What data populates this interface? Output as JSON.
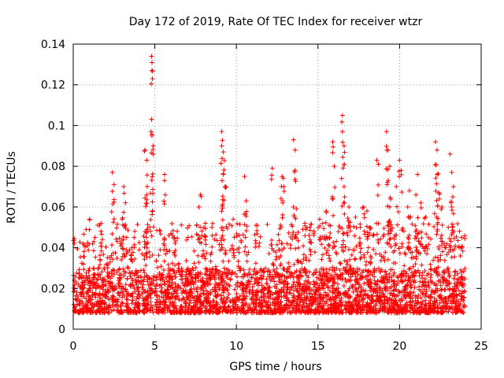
{
  "chart_data": {
    "type": "scatter",
    "title": "Day 172 of 2019, Rate Of TEC Index for receiver wtzr",
    "xlabel": "GPS time / hours",
    "ylabel": "ROTI / TECUs",
    "xlim": [
      0,
      25
    ],
    "ylim": [
      0,
      0.14
    ],
    "xticks": [
      0,
      5,
      10,
      15,
      20,
      25
    ],
    "xtick_labels": [
      "0",
      "5",
      "10",
      "15",
      "20",
      "25"
    ],
    "yticks": [
      0,
      0.02,
      0.04,
      0.06,
      0.08,
      0.1,
      0.12,
      0.14
    ],
    "ytick_labels": [
      "0",
      "0.02",
      "0.04",
      "0.06",
      "0.08",
      "0.1",
      "0.12",
      "0.14"
    ],
    "grid": true,
    "marker": "+",
    "color": "#ff0000",
    "data_extent_hours": [
      0,
      24
    ],
    "typical_band": [
      0.008,
      0.03
    ],
    "spikes": [
      {
        "x": 0.6,
        "y": 0.042
      },
      {
        "x": 1.0,
        "y": 0.054
      },
      {
        "x": 1.7,
        "y": 0.052
      },
      {
        "x": 2.4,
        "y": 0.077
      },
      {
        "x": 2.5,
        "y": 0.071
      },
      {
        "x": 3.0,
        "y": 0.054
      },
      {
        "x": 3.1,
        "y": 0.07
      },
      {
        "x": 3.2,
        "y": 0.062
      },
      {
        "x": 3.6,
        "y": 0.04
      },
      {
        "x": 4.4,
        "y": 0.088
      },
      {
        "x": 4.5,
        "y": 0.083
      },
      {
        "x": 4.5,
        "y": 0.066
      },
      {
        "x": 4.8,
        "y": 0.134
      },
      {
        "x": 4.82,
        "y": 0.127
      },
      {
        "x": 4.85,
        "y": 0.123
      },
      {
        "x": 4.8,
        "y": 0.103
      },
      {
        "x": 4.9,
        "y": 0.09
      },
      {
        "x": 5.6,
        "y": 0.076
      },
      {
        "x": 5.6,
        "y": 0.073
      },
      {
        "x": 6.2,
        "y": 0.045
      },
      {
        "x": 7.8,
        "y": 0.066
      },
      {
        "x": 7.7,
        "y": 0.06
      },
      {
        "x": 8.1,
        "y": 0.052
      },
      {
        "x": 8.5,
        "y": 0.05
      },
      {
        "x": 9.1,
        "y": 0.097
      },
      {
        "x": 9.1,
        "y": 0.09
      },
      {
        "x": 9.2,
        "y": 0.087
      },
      {
        "x": 9.2,
        "y": 0.076
      },
      {
        "x": 9.3,
        "y": 0.07
      },
      {
        "x": 9.8,
        "y": 0.054
      },
      {
        "x": 10.5,
        "y": 0.075
      },
      {
        "x": 10.6,
        "y": 0.063
      },
      {
        "x": 11.2,
        "y": 0.051
      },
      {
        "x": 12.2,
        "y": 0.079
      },
      {
        "x": 12.8,
        "y": 0.075
      },
      {
        "x": 12.9,
        "y": 0.07
      },
      {
        "x": 13.5,
        "y": 0.093
      },
      {
        "x": 13.6,
        "y": 0.088
      },
      {
        "x": 13.6,
        "y": 0.078
      },
      {
        "x": 13.5,
        "y": 0.06
      },
      {
        "x": 14.2,
        "y": 0.052
      },
      {
        "x": 14.5,
        "y": 0.05
      },
      {
        "x": 15.1,
        "y": 0.054
      },
      {
        "x": 15.5,
        "y": 0.058
      },
      {
        "x": 15.7,
        "y": 0.045
      },
      {
        "x": 15.9,
        "y": 0.092
      },
      {
        "x": 16.0,
        "y": 0.08
      },
      {
        "x": 16.5,
        "y": 0.105
      },
      {
        "x": 16.5,
        "y": 0.097
      },
      {
        "x": 16.6,
        "y": 0.09
      },
      {
        "x": 16.6,
        "y": 0.07
      },
      {
        "x": 16.9,
        "y": 0.06
      },
      {
        "x": 17.3,
        "y": 0.055
      },
      {
        "x": 17.6,
        "y": 0.05
      },
      {
        "x": 17.8,
        "y": 0.06
      },
      {
        "x": 18.0,
        "y": 0.058
      },
      {
        "x": 18.6,
        "y": 0.083
      },
      {
        "x": 18.7,
        "y": 0.081
      },
      {
        "x": 19.2,
        "y": 0.097
      },
      {
        "x": 19.3,
        "y": 0.088
      },
      {
        "x": 19.4,
        "y": 0.08
      },
      {
        "x": 19.3,
        "y": 0.073
      },
      {
        "x": 19.4,
        "y": 0.06
      },
      {
        "x": 19.8,
        "y": 0.07
      },
      {
        "x": 20.0,
        "y": 0.083
      },
      {
        "x": 20.1,
        "y": 0.078
      },
      {
        "x": 20.5,
        "y": 0.06
      },
      {
        "x": 20.6,
        "y": 0.068
      },
      {
        "x": 21.0,
        "y": 0.066
      },
      {
        "x": 21.1,
        "y": 0.076
      },
      {
        "x": 21.3,
        "y": 0.062
      },
      {
        "x": 21.6,
        "y": 0.055
      },
      {
        "x": 22.2,
        "y": 0.092
      },
      {
        "x": 22.3,
        "y": 0.088
      },
      {
        "x": 22.3,
        "y": 0.076
      },
      {
        "x": 22.4,
        "y": 0.067
      },
      {
        "x": 22.6,
        "y": 0.06
      },
      {
        "x": 23.1,
        "y": 0.086
      },
      {
        "x": 23.2,
        "y": 0.077
      },
      {
        "x": 23.3,
        "y": 0.07
      },
      {
        "x": 23.2,
        "y": 0.06
      },
      {
        "x": 23.8,
        "y": 0.045
      }
    ]
  }
}
